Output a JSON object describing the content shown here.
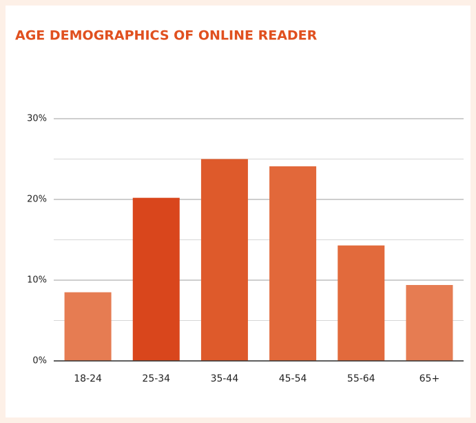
{
  "chart_data": {
    "type": "bar",
    "title": "AGE DEMOGRAPHICS OF ONLINE READER",
    "categories": [
      "18-24",
      "25-34",
      "35-44",
      "45-54",
      "55-64",
      "65+"
    ],
    "values": [
      8.5,
      20.2,
      25,
      24.1,
      14.3,
      9.4
    ],
    "colors": [
      "#e67c52",
      "#d9461c",
      "#de5a2b",
      "#e2683a",
      "#e26a3c",
      "#e67c52"
    ],
    "ylim": [
      0,
      30
    ],
    "yticks": [
      {
        "value": 0,
        "label": "0%"
      },
      {
        "value": 10,
        "label": "10%"
      },
      {
        "value": 20,
        "label": "20%"
      },
      {
        "value": 30,
        "label": "30%"
      }
    ],
    "minor_yticks": [
      5,
      15,
      25
    ],
    "grid": true
  }
}
